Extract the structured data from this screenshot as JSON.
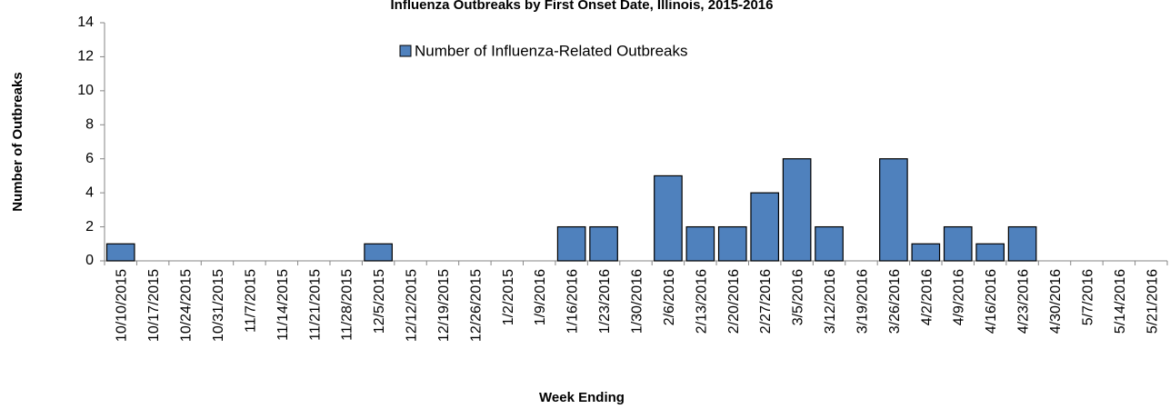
{
  "chart_data": {
    "type": "bar",
    "title": "Influenza Outbreaks by First Onset Date, Illinois, 2015-2016",
    "x_label": "Week Ending",
    "y_label": "Number of Outbreaks",
    "categories": [
      "10/10/2015",
      "10/17/2015",
      "10/24/2015",
      "10/31/2015",
      "11/7/2015",
      "11/14/2015",
      "11/21/2015",
      "11/28/2015",
      "12/5/2015",
      "12/12/2015",
      "12/19/2015",
      "12/26/2015",
      "1/2/2015",
      "1/9/2016",
      "1/16/2016",
      "1/23/2016",
      "1/30/2016",
      "2/6/2016",
      "2/13/2016",
      "2/20/2016",
      "2/27/2016",
      "3/5/2016",
      "3/12/2016",
      "3/19/2016",
      "3/26/2016",
      "4/2/2016",
      "4/9/2016",
      "4/16/2016",
      "4/23/2016",
      "4/30/2016",
      "5/7/2016",
      "5/14/2016",
      "5/21/2016"
    ],
    "series": [
      {
        "name": "Number of Influenza-Related Outbreaks",
        "color": "#4f81bd",
        "values": [
          1,
          0,
          0,
          0,
          0,
          0,
          0,
          0,
          1,
          0,
          0,
          0,
          0,
          0,
          2,
          2,
          0,
          5,
          2,
          2,
          4,
          6,
          2,
          0,
          6,
          1,
          2,
          1,
          2,
          0,
          0,
          0,
          0
        ]
      }
    ],
    "ylim": [
      0,
      14
    ],
    "yticks": [
      0,
      2,
      4,
      6,
      8,
      10,
      12,
      14
    ],
    "grid": false,
    "legend": "top"
  }
}
